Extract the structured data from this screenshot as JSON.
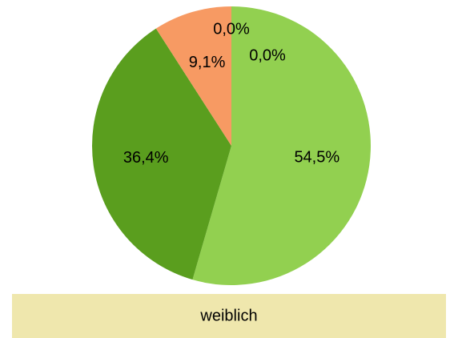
{
  "chart_data": {
    "type": "pie",
    "title": "weiblich",
    "values": [
      54.5,
      36.4,
      9.1,
      0,
      0
    ],
    "value_labels": [
      "54,5%",
      "36,4%",
      "9,1%",
      "0,0%",
      "0,0%"
    ],
    "colors": [
      "#92d050",
      "#5a9e1e",
      "#f79a63",
      "#4f81bd",
      "#c0504d"
    ]
  }
}
